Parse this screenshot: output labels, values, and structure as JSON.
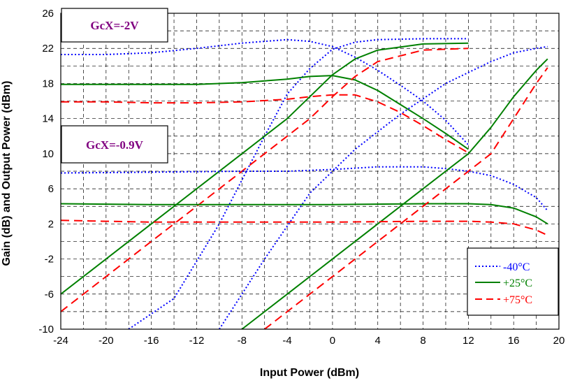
{
  "chart_data": {
    "type": "line",
    "title": "",
    "xlabel": "Input Power (dBm)",
    "ylabel": "Gain (dB) and Output Power (dBm)",
    "xlim": [
      -24,
      20
    ],
    "ylim": [
      -10,
      26
    ],
    "xticks": [
      -24,
      -20,
      -16,
      -12,
      -8,
      -4,
      0,
      4,
      8,
      12,
      16,
      20
    ],
    "yticks": [
      -10,
      -6,
      -2,
      2,
      6,
      10,
      14,
      18,
      22,
      26
    ],
    "grid": true,
    "legend_position": "bottom-right",
    "legend": [
      {
        "label": "-40°C",
        "color": "#0000ff",
        "dash": "dotted"
      },
      {
        "label": "+25°C",
        "color": "#008000",
        "dash": "solid"
      },
      {
        "label": "+75°C",
        "color": "#ff0000",
        "dash": "dashed"
      }
    ],
    "annotations": [
      {
        "text": "GcX=-2V",
        "color": "#800080"
      },
      {
        "text": "GcX=-0.9V",
        "color": "#800080"
      }
    ],
    "series": [
      {
        "name": "-40°C",
        "group": "GcX=-2V gain",
        "color": "#0000ff",
        "dash": "dotted",
        "x": [
          -24,
          -20,
          -16,
          -12,
          -8,
          -4,
          -2,
          0,
          2,
          4,
          6,
          8,
          10,
          12
        ],
        "y": [
          21.3,
          21.3,
          21.5,
          22.0,
          22.6,
          23.0,
          22.8,
          22.2,
          21.0,
          19.5,
          17.8,
          16.0,
          13.8,
          11.0
        ]
      },
      {
        "name": "-40°C",
        "group": "GcX=-2V output",
        "color": "#0000ff",
        "dash": "dotted",
        "x": [
          -18,
          -14,
          -10,
          -6,
          -4,
          -2,
          0,
          2,
          4,
          8,
          12
        ],
        "y": [
          -10,
          -6.5,
          2.0,
          12.0,
          16.8,
          19.7,
          21.9,
          22.7,
          23.0,
          23.1,
          23.1
        ]
      },
      {
        "name": "+25°C",
        "group": "GcX=-2V gain",
        "color": "#008000",
        "dash": "solid",
        "x": [
          -24,
          -20,
          -16,
          -12,
          -8,
          -4,
          -2,
          0,
          2,
          4,
          6,
          8,
          10,
          12
        ],
        "y": [
          17.9,
          17.9,
          17.9,
          17.9,
          18.1,
          18.5,
          18.8,
          18.9,
          18.4,
          17.2,
          15.6,
          14.0,
          12.3,
          10.5
        ]
      },
      {
        "name": "+25°C",
        "group": "GcX=-2V output",
        "color": "#008000",
        "dash": "solid",
        "x": [
          -24,
          -20,
          -16,
          -12,
          -8,
          -4,
          -2,
          0,
          2,
          4,
          8,
          12
        ],
        "y": [
          -6.0,
          -2.0,
          2.0,
          6.0,
          10.0,
          14.0,
          16.5,
          19.0,
          20.8,
          21.8,
          22.5,
          22.6
        ]
      },
      {
        "name": "+75°C",
        "group": "GcX=-2V gain",
        "color": "#ff0000",
        "dash": "dashed",
        "x": [
          -24,
          -20,
          -16,
          -12,
          -8,
          -4,
          -2,
          0,
          2,
          4,
          6,
          8,
          10,
          12
        ],
        "y": [
          15.9,
          15.9,
          15.8,
          15.8,
          15.9,
          16.2,
          16.5,
          16.7,
          16.7,
          15.9,
          14.7,
          13.2,
          11.6,
          10.1
        ]
      },
      {
        "name": "+75°C",
        "group": "GcX=-2V output",
        "color": "#ff0000",
        "dash": "dashed",
        "x": [
          -24,
          -20,
          -16,
          -12,
          -8,
          -4,
          -2,
          0,
          2,
          4,
          8,
          12
        ],
        "y": [
          -8.0,
          -4.0,
          0.0,
          4.0,
          8.0,
          12.0,
          14.0,
          16.5,
          18.8,
          20.5,
          21.8,
          22.0
        ]
      },
      {
        "name": "-40°C",
        "group": "GcX=-0.9V gain",
        "color": "#0000ff",
        "dash": "dotted",
        "x": [
          -24,
          -16,
          -8,
          -4,
          0,
          4,
          8,
          10,
          12,
          14,
          16,
          18,
          19
        ],
        "y": [
          7.8,
          7.9,
          8.0,
          8.0,
          8.2,
          8.5,
          8.5,
          8.3,
          8.0,
          7.5,
          6.5,
          5.0,
          3.5
        ]
      },
      {
        "name": "-40°C",
        "group": "GcX=-0.9V output",
        "color": "#0000ff",
        "dash": "dotted",
        "x": [
          -10,
          -6,
          -2,
          2,
          6,
          10,
          14,
          16,
          18,
          19
        ],
        "y": [
          -10.0,
          -2.0,
          5.5,
          10.5,
          14.5,
          18.0,
          20.5,
          21.5,
          22.0,
          22.2
        ]
      },
      {
        "name": "+25°C",
        "group": "GcX=-0.9V gain",
        "color": "#008000",
        "dash": "solid",
        "x": [
          -24,
          -16,
          -8,
          0,
          8,
          12,
          14,
          16,
          18,
          19
        ],
        "y": [
          4.3,
          4.2,
          4.2,
          4.2,
          4.3,
          4.3,
          4.2,
          3.8,
          2.8,
          2.0
        ]
      },
      {
        "name": "+25°C",
        "group": "GcX=-0.9V output",
        "color": "#008000",
        "dash": "solid",
        "x": [
          -8,
          -4,
          0,
          4,
          8,
          12,
          14,
          16,
          18,
          19
        ],
        "y": [
          -10.0,
          -6.0,
          -2.0,
          2.0,
          6.0,
          10.0,
          13.0,
          16.5,
          19.5,
          20.8
        ]
      },
      {
        "name": "+75°C",
        "group": "GcX=-0.9V gain",
        "color": "#ff0000",
        "dash": "dashed",
        "x": [
          -24,
          -20,
          -16,
          -8,
          0,
          8,
          12,
          14,
          16,
          18,
          19
        ],
        "y": [
          2.4,
          2.3,
          2.2,
          2.2,
          2.2,
          2.3,
          2.3,
          2.2,
          2.0,
          1.3,
          0.7
        ]
      },
      {
        "name": "+75°C",
        "group": "GcX=-0.9V output",
        "color": "#ff0000",
        "dash": "dashed",
        "x": [
          -6,
          -2,
          2,
          6,
          10,
          14,
          16,
          18,
          19
        ],
        "y": [
          -10.0,
          -6.0,
          -2.0,
          2.0,
          6.0,
          10.0,
          14.0,
          18.0,
          19.8
        ]
      }
    ]
  }
}
